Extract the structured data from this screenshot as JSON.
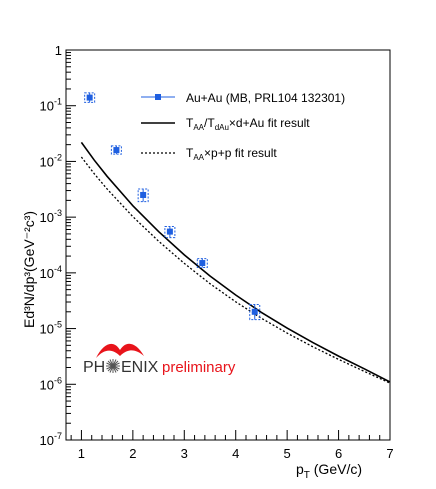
{
  "chart_data": {
    "type": "scatter",
    "title": "",
    "xlabel": {
      "main": "p",
      "sub": "T",
      "rest": " (GeV/c)"
    },
    "ylabel": "Ed³N/dp³(GeV⁻²c³)",
    "xlim": [
      0.7,
      7.0
    ],
    "ylim": [
      1e-07,
      1
    ],
    "yscale": "log",
    "x_ticks": [
      "1",
      "2",
      "3",
      "4",
      "5",
      "6",
      "7"
    ],
    "y_ticks": [
      {
        "base": "10",
        "exp": "-7"
      },
      {
        "base": "10",
        "exp": "-6"
      },
      {
        "base": "10",
        "exp": "-5"
      },
      {
        "base": "10",
        "exp": "-4"
      },
      {
        "base": "10",
        "exp": "-3"
      },
      {
        "base": "10",
        "exp": "-2"
      },
      {
        "base": "10",
        "exp": "-1"
      },
      {
        "base": "1",
        "exp": ""
      }
    ],
    "grid": false,
    "legend_position": "top-right",
    "series": [
      {
        "name": "Au+Au (MB, PRL104 132301)",
        "kind": "points",
        "color": "#1f5fe0",
        "x": [
          1.16,
          1.68,
          2.2,
          2.72,
          3.35,
          4.37
        ],
        "y": [
          0.14,
          0.016,
          0.0025,
          0.00055,
          0.00015,
          2e-05
        ],
        "err_low": [
          0.115,
          0.0135,
          0.0019,
          0.00043,
          0.000125,
          1.45e-05
        ],
        "err_high": [
          0.17,
          0.019,
          0.0032,
          0.00068,
          0.00018,
          2.7e-05
        ]
      },
      {
        "label_parts": [
          "T",
          "AA",
          "/T",
          "dAu",
          "×d+Au fit result"
        ],
        "kind": "line",
        "dash": "solid",
        "color": "#000000",
        "x": [
          1.0,
          1.25,
          1.5,
          2.0,
          2.5,
          3.0,
          3.5,
          4.0,
          4.5,
          5.0,
          5.5,
          6.0,
          6.5,
          7.0
        ],
        "y": [
          0.022,
          0.0105,
          0.0054,
          0.0016,
          0.00055,
          0.00021,
          8.8e-05,
          4e-05,
          1.95e-05,
          1.02e-05,
          5.6e-06,
          3.2e-06,
          1.9e-06,
          1.1e-06
        ]
      },
      {
        "label_parts": [
          "T",
          "AA",
          "×p+p fit result"
        ],
        "kind": "line",
        "dash": "dotted",
        "color": "#000000",
        "x": [
          1.0,
          1.25,
          1.5,
          2.0,
          2.5,
          3.0,
          3.5,
          4.0,
          4.5,
          5.0,
          5.5,
          6.0,
          6.5,
          7.0
        ],
        "y": [
          0.012,
          0.006,
          0.0032,
          0.00102,
          0.00037,
          0.000148,
          6.4e-05,
          3.02e-05,
          1.53e-05,
          8.3e-06,
          4.7e-06,
          2.8e-06,
          1.7e-06,
          1.05e-06
        ]
      }
    ],
    "annotations": {
      "logo_left": "PH",
      "logo_right": "ENIX",
      "logo_suffix": "preliminary"
    }
  }
}
